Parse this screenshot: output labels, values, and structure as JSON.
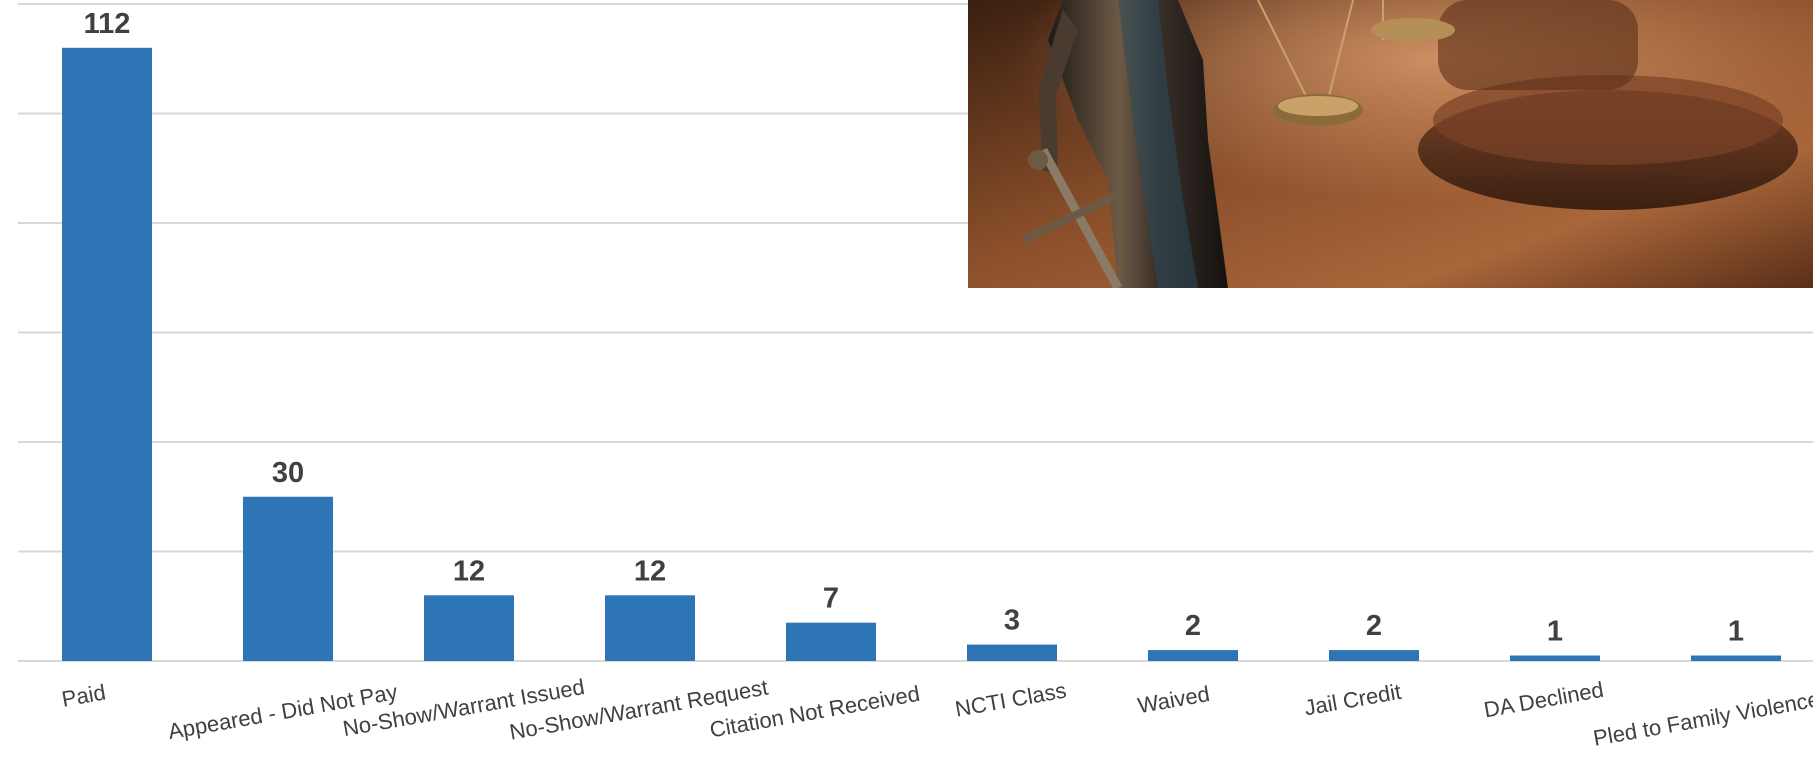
{
  "chart_data": {
    "type": "bar",
    "categories": [
      "Paid",
      "Appeared - Did Not Pay",
      "No-Show/Warrant Issued",
      "No-Show/Warrant Request",
      "Citation Not Received",
      "NCTI Class",
      "Waived",
      "Jail Credit",
      "DA Declined",
      "Pled to Family Violence Case"
    ],
    "values": [
      112,
      30,
      12,
      12,
      7,
      3,
      2,
      2,
      1,
      1
    ],
    "title": "",
    "xlabel": "",
    "ylabel": "",
    "ylim": [
      0,
      120
    ],
    "grid": true,
    "legend": "none",
    "colors": {
      "bar": "#2e75b6",
      "grid": "#d9d9d9",
      "label": "#404040"
    }
  },
  "image": {
    "subject": "justice-statue-with-scales-and-gavel",
    "colors": {
      "background": "#6b3a1f",
      "table": "#a0623a",
      "statue": "#2b2420",
      "bronze": "#9a7444"
    }
  }
}
